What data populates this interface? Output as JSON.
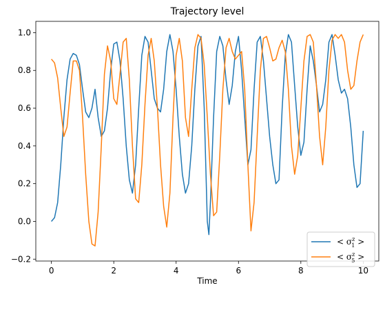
{
  "chart_data": {
    "type": "line",
    "title": "Trajectory level",
    "xlabel": "Time",
    "ylabel": "",
    "xlim": [
      -0.5,
      10.5
    ],
    "ylim": [
      -0.21,
      1.06
    ],
    "xticks": [
      0,
      2,
      4,
      6,
      8,
      10
    ],
    "xtick_labels": [
      "0",
      "2",
      "4",
      "6",
      "8",
      "10"
    ],
    "yticks": [
      -0.2,
      0.0,
      0.2,
      0.4,
      0.6,
      0.8,
      1.0
    ],
    "ytick_labels": [
      "−0.2",
      "0.0",
      "0.2",
      "0.4",
      "0.6",
      "0.8",
      "1.0"
    ],
    "grid": false,
    "legend_position": "lower-right",
    "series": [
      {
        "name": "< σ₁ᶻ >",
        "legend_base": "< σ",
        "legend_sup": "z",
        "legend_sub": "1",
        "legend_end": " >",
        "color": "#1f77b4",
        "x": [
          0.0,
          0.1,
          0.2,
          0.3,
          0.4,
          0.5,
          0.6,
          0.7,
          0.8,
          0.9,
          1.0,
          1.1,
          1.2,
          1.3,
          1.4,
          1.5,
          1.6,
          1.7,
          1.8,
          1.9,
          2.0,
          2.1,
          2.2,
          2.3,
          2.4,
          2.5,
          2.6,
          2.7,
          2.8,
          2.9,
          3.0,
          3.1,
          3.2,
          3.3,
          3.4,
          3.5,
          3.6,
          3.7,
          3.8,
          3.9,
          4.0,
          4.1,
          4.2,
          4.3,
          4.4,
          4.5,
          4.6,
          4.7,
          4.8,
          4.9,
          5.0,
          5.05,
          5.1,
          5.2,
          5.3,
          5.4,
          5.5,
          5.6,
          5.7,
          5.8,
          5.9,
          6.0,
          6.1,
          6.2,
          6.3,
          6.4,
          6.5,
          6.6,
          6.7,
          6.8,
          6.9,
          7.0,
          7.1,
          7.2,
          7.3,
          7.4,
          7.5,
          7.6,
          7.7,
          7.8,
          7.9,
          8.0,
          8.1,
          8.2,
          8.3,
          8.4,
          8.5,
          8.6,
          8.7,
          8.8,
          8.9,
          9.0,
          9.1,
          9.2,
          9.3,
          9.4,
          9.5,
          9.6,
          9.7,
          9.8,
          9.9,
          10.0
        ],
        "values": [
          0.0,
          0.02,
          0.1,
          0.3,
          0.55,
          0.75,
          0.86,
          0.89,
          0.88,
          0.83,
          0.7,
          0.58,
          0.55,
          0.6,
          0.7,
          0.55,
          0.45,
          0.48,
          0.6,
          0.8,
          0.94,
          0.95,
          0.85,
          0.65,
          0.4,
          0.22,
          0.15,
          0.3,
          0.6,
          0.88,
          0.98,
          0.95,
          0.8,
          0.65,
          0.6,
          0.58,
          0.7,
          0.9,
          0.99,
          0.9,
          0.7,
          0.45,
          0.25,
          0.15,
          0.2,
          0.4,
          0.7,
          0.93,
          0.98,
          0.6,
          0.0,
          -0.07,
          0.1,
          0.55,
          0.9,
          0.98,
          0.93,
          0.75,
          0.62,
          0.72,
          0.9,
          0.98,
          0.8,
          0.55,
          0.3,
          0.38,
          0.7,
          0.95,
          0.98,
          0.85,
          0.65,
          0.45,
          0.3,
          0.2,
          0.22,
          0.6,
          0.88,
          0.99,
          0.95,
          0.72,
          0.5,
          0.35,
          0.42,
          0.7,
          0.93,
          0.85,
          0.72,
          0.58,
          0.62,
          0.75,
          0.95,
          0.99,
          0.88,
          0.75,
          0.68,
          0.7,
          0.65,
          0.5,
          0.3,
          0.18,
          0.2,
          0.48
        ]
      },
      {
        "name": "< σ₅ᶻ >",
        "legend_base": "< σ",
        "legend_sup": "z",
        "legend_sub": "5",
        "legend_end": " >",
        "color": "#ff7f0e",
        "x": [
          0.0,
          0.1,
          0.2,
          0.3,
          0.4,
          0.5,
          0.6,
          0.7,
          0.8,
          0.9,
          1.0,
          1.1,
          1.2,
          1.3,
          1.4,
          1.5,
          1.6,
          1.7,
          1.8,
          1.9,
          2.0,
          2.1,
          2.2,
          2.3,
          2.4,
          2.5,
          2.6,
          2.7,
          2.8,
          2.9,
          3.0,
          3.1,
          3.2,
          3.3,
          3.4,
          3.5,
          3.6,
          3.7,
          3.8,
          3.9,
          4.0,
          4.1,
          4.2,
          4.3,
          4.4,
          4.5,
          4.6,
          4.7,
          4.8,
          4.9,
          5.0,
          5.1,
          5.2,
          5.3,
          5.4,
          5.5,
          5.6,
          5.7,
          5.8,
          5.9,
          6.0,
          6.1,
          6.2,
          6.3,
          6.4,
          6.5,
          6.6,
          6.7,
          6.8,
          6.9,
          7.0,
          7.1,
          7.2,
          7.3,
          7.4,
          7.5,
          7.6,
          7.7,
          7.8,
          7.9,
          8.0,
          8.1,
          8.2,
          8.3,
          8.4,
          8.5,
          8.6,
          8.7,
          8.8,
          8.9,
          9.0,
          9.1,
          9.2,
          9.3,
          9.4,
          9.5,
          9.6,
          9.7,
          9.8,
          9.9,
          10.0
        ],
        "values": [
          0.86,
          0.84,
          0.76,
          0.6,
          0.45,
          0.5,
          0.68,
          0.85,
          0.85,
          0.8,
          0.55,
          0.25,
          0.0,
          -0.12,
          -0.13,
          0.05,
          0.4,
          0.78,
          0.93,
          0.85,
          0.65,
          0.62,
          0.78,
          0.95,
          0.97,
          0.75,
          0.4,
          0.12,
          0.1,
          0.3,
          0.62,
          0.88,
          0.97,
          0.85,
          0.6,
          0.3,
          0.08,
          -0.03,
          0.15,
          0.55,
          0.88,
          0.97,
          0.85,
          0.55,
          0.45,
          0.7,
          0.92,
          0.99,
          0.97,
          0.83,
          0.55,
          0.25,
          0.03,
          0.05,
          0.35,
          0.7,
          0.92,
          0.97,
          0.9,
          0.86,
          0.88,
          0.9,
          0.7,
          0.3,
          -0.05,
          0.1,
          0.45,
          0.8,
          0.97,
          0.98,
          0.92,
          0.85,
          0.86,
          0.92,
          0.96,
          0.9,
          0.7,
          0.4,
          0.25,
          0.35,
          0.6,
          0.85,
          0.98,
          0.99,
          0.95,
          0.72,
          0.45,
          0.3,
          0.5,
          0.8,
          0.96,
          0.99,
          0.97,
          0.99,
          0.95,
          0.8,
          0.7,
          0.72,
          0.85,
          0.95,
          0.99
        ]
      }
    ]
  }
}
